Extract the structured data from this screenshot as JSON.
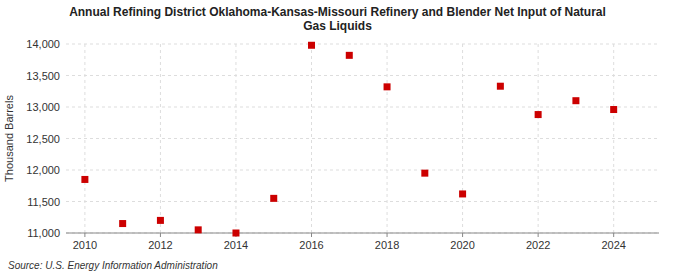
{
  "chart_data": {
    "type": "scatter",
    "title": "Annual Refining District Oklahoma-Kansas-Missouri Refinery and Blender Net Input of Natural\nGas Liquids",
    "ylabel": "Thousand Barrels",
    "source": "Source: U.S. Energy Information Administration",
    "x": [
      2010,
      2011,
      2012,
      2013,
      2014,
      2015,
      2016,
      2017,
      2018,
      2019,
      2020,
      2021,
      2022,
      2023,
      2024
    ],
    "values": [
      11850,
      11150,
      11200,
      11050,
      11000,
      11550,
      13980,
      13820,
      13320,
      11950,
      11620,
      13330,
      12880,
      13100,
      12960
    ],
    "color": "#cc0000",
    "marker": "square",
    "grid": true,
    "xlim": [
      2009.5,
      2025.2
    ],
    "xticks": [
      2010,
      2012,
      2014,
      2016,
      2018,
      2020,
      2022,
      2024
    ],
    "ylim": [
      11000,
      14000
    ],
    "yticks": [
      {
        "value": 11000,
        "label": "11,000"
      },
      {
        "value": 11500,
        "label": "11,500"
      },
      {
        "value": 12000,
        "label": "12,000"
      },
      {
        "value": 12500,
        "label": "12,500"
      },
      {
        "value": 13000,
        "label": "13,000"
      },
      {
        "value": 13500,
        "label": "13,500"
      },
      {
        "value": 14000,
        "label": "14,000"
      }
    ]
  }
}
